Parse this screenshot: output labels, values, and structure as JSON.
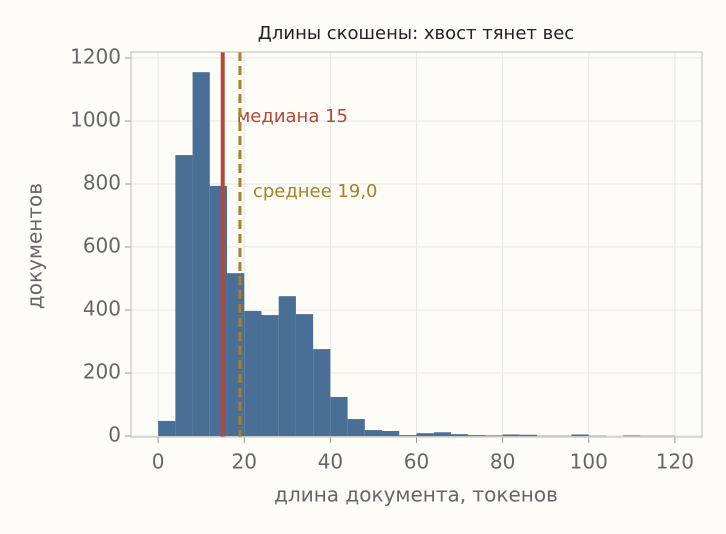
{
  "chart_data": {
    "type": "histogram",
    "title": "Длины скошены: хвост тянет вес",
    "x_label": "длина документа, токенов",
    "y_label": "документов",
    "bins": [
      0,
      4,
      8,
      12,
      16,
      20,
      24,
      28,
      32,
      36,
      40,
      44,
      48,
      52,
      56,
      60,
      64,
      68,
      72,
      76,
      80,
      84,
      88,
      92,
      96,
      100,
      104,
      108,
      112,
      116,
      120
    ],
    "values": [
      48,
      892,
      1155,
      794,
      517,
      397,
      384,
      444,
      387,
      276,
      124,
      54,
      19,
      16,
      3,
      9,
      12,
      6,
      3,
      2,
      5,
      4,
      1,
      1,
      5,
      1,
      0,
      2,
      1,
      1
    ],
    "color": "#4a6f96",
    "xlim": [
      -6.3,
      126.3
    ],
    "ylim": [
      -3,
      1219
    ],
    "xticks": [
      0,
      20,
      40,
      60,
      80,
      100,
      120
    ],
    "yticks": [
      0,
      200,
      400,
      600,
      800,
      1000,
      1200
    ],
    "grid": true,
    "lines": [
      {
        "value": 15,
        "text": "медиана 15",
        "color": "#b5483a",
        "style": "solid"
      },
      {
        "value": 19.0,
        "text": "среднее 19,0",
        "color": "#a8802a",
        "style": "dashed"
      }
    ]
  }
}
